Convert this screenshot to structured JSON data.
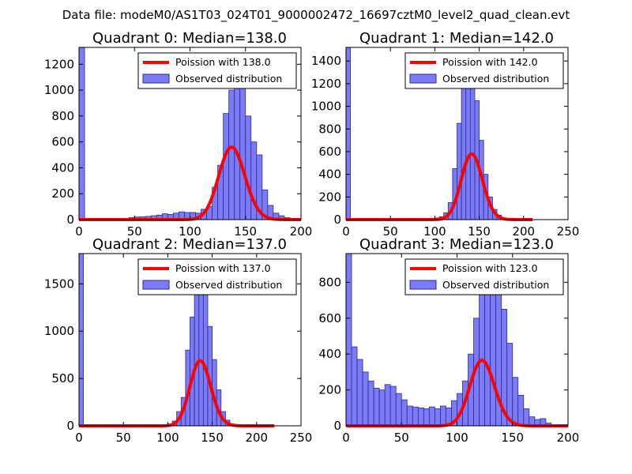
{
  "figure": {
    "suptitle": "Data file: modeM0/AS1T03_024T01_9000002472_16697cztM0_level2_quad_clean.evt"
  },
  "colors": {
    "bar_fill": "#7b7bf7",
    "bar_edge": "#2c2c8a",
    "fit_line": "#ff0000",
    "axes": "#000000",
    "background": "#ffffff"
  },
  "chart_data": [
    {
      "type": "bar",
      "title": "Quadrant 0: Median=138.0",
      "xlim": [
        0,
        200
      ],
      "ylim": [
        0,
        1330
      ],
      "xticks": [
        0,
        50,
        100,
        150,
        200
      ],
      "yticks": [
        0,
        200,
        400,
        600,
        800,
        1000,
        1200
      ],
      "legend": {
        "location": "top-right",
        "entries": [
          "Poission with 138.0",
          "Observed distribution"
        ]
      },
      "histogram": {
        "bin_width": 5,
        "bins": [
          {
            "x": 0,
            "count": 1330
          },
          {
            "x": 5,
            "count": 5
          },
          {
            "x": 10,
            "count": 5
          },
          {
            "x": 15,
            "count": 5
          },
          {
            "x": 20,
            "count": 5
          },
          {
            "x": 25,
            "count": 5
          },
          {
            "x": 30,
            "count": 5
          },
          {
            "x": 35,
            "count": 8
          },
          {
            "x": 40,
            "count": 10
          },
          {
            "x": 45,
            "count": 15
          },
          {
            "x": 50,
            "count": 20
          },
          {
            "x": 55,
            "count": 22
          },
          {
            "x": 60,
            "count": 25
          },
          {
            "x": 65,
            "count": 30
          },
          {
            "x": 70,
            "count": 35
          },
          {
            "x": 75,
            "count": 45
          },
          {
            "x": 80,
            "count": 40
          },
          {
            "x": 85,
            "count": 50
          },
          {
            "x": 90,
            "count": 60
          },
          {
            "x": 95,
            "count": 55
          },
          {
            "x": 100,
            "count": 55
          },
          {
            "x": 105,
            "count": 50
          },
          {
            "x": 110,
            "count": 80
          },
          {
            "x": 115,
            "count": 100
          },
          {
            "x": 120,
            "count": 250
          },
          {
            "x": 125,
            "count": 420
          },
          {
            "x": 130,
            "count": 820
          },
          {
            "x": 135,
            "count": 1000
          },
          {
            "x": 140,
            "count": 1150
          },
          {
            "x": 145,
            "count": 1030
          },
          {
            "x": 150,
            "count": 800
          },
          {
            "x": 155,
            "count": 600
          },
          {
            "x": 160,
            "count": 500
          },
          {
            "x": 165,
            "count": 230
          },
          {
            "x": 170,
            "count": 110
          },
          {
            "x": 175,
            "count": 50
          },
          {
            "x": 180,
            "count": 30
          },
          {
            "x": 185,
            "count": 15
          },
          {
            "x": 190,
            "count": 5
          },
          {
            "x": 195,
            "count": 5
          }
        ]
      },
      "poisson_fit": {
        "mean": 138.0,
        "scale": 16480,
        "x_range": [
          0,
          200
        ]
      }
    },
    {
      "type": "bar",
      "title": "Quadrant 1: Median=142.0",
      "xlim": [
        0,
        250
      ],
      "ylim": [
        0,
        1520
      ],
      "xticks": [
        0,
        50,
        100,
        150,
        200,
        250
      ],
      "yticks": [
        0,
        200,
        400,
        600,
        800,
        1000,
        1200,
        1400
      ],
      "legend": {
        "location": "top-right",
        "entries": [
          "Poission with 142.0",
          "Observed distribution"
        ]
      },
      "histogram": {
        "bin_width": 5,
        "bins": [
          {
            "x": 0,
            "count": 1520
          },
          {
            "x": 5,
            "count": 3
          },
          {
            "x": 10,
            "count": 3
          },
          {
            "x": 15,
            "count": 3
          },
          {
            "x": 20,
            "count": 3
          },
          {
            "x": 25,
            "count": 3
          },
          {
            "x": 30,
            "count": 3
          },
          {
            "x": 35,
            "count": 3
          },
          {
            "x": 40,
            "count": 3
          },
          {
            "x": 45,
            "count": 3
          },
          {
            "x": 50,
            "count": 3
          },
          {
            "x": 55,
            "count": 3
          },
          {
            "x": 60,
            "count": 3
          },
          {
            "x": 65,
            "count": 3
          },
          {
            "x": 70,
            "count": 3
          },
          {
            "x": 75,
            "count": 3
          },
          {
            "x": 80,
            "count": 3
          },
          {
            "x": 85,
            "count": 3
          },
          {
            "x": 90,
            "count": 5
          },
          {
            "x": 95,
            "count": 8
          },
          {
            "x": 100,
            "count": 15
          },
          {
            "x": 105,
            "count": 25
          },
          {
            "x": 110,
            "count": 60
          },
          {
            "x": 115,
            "count": 150
          },
          {
            "x": 120,
            "count": 450
          },
          {
            "x": 125,
            "count": 850
          },
          {
            "x": 130,
            "count": 1200
          },
          {
            "x": 135,
            "count": 1450
          },
          {
            "x": 140,
            "count": 1370
          },
          {
            "x": 145,
            "count": 1050
          },
          {
            "x": 150,
            "count": 700
          },
          {
            "x": 155,
            "count": 400
          },
          {
            "x": 160,
            "count": 200
          },
          {
            "x": 165,
            "count": 90
          },
          {
            "x": 170,
            "count": 40
          },
          {
            "x": 175,
            "count": 15
          },
          {
            "x": 180,
            "count": 5
          },
          {
            "x": 185,
            "count": 3
          },
          {
            "x": 190,
            "count": 3
          }
        ]
      },
      "poisson_fit": {
        "mean": 142.0,
        "scale": 17330,
        "x_range": [
          0,
          210
        ]
      }
    },
    {
      "type": "bar",
      "title": "Quadrant 2: Median=137.0",
      "xlim": [
        0,
        250
      ],
      "ylim": [
        0,
        1820
      ],
      "xticks": [
        0,
        50,
        100,
        150,
        200,
        250
      ],
      "yticks": [
        0,
        500,
        1000,
        1500
      ],
      "legend": {
        "location": "top-right",
        "entries": [
          "Poission with 137.0",
          "Observed distribution"
        ]
      },
      "histogram": {
        "bin_width": 5,
        "bins": [
          {
            "x": 0,
            "count": 1820
          },
          {
            "x": 90,
            "count": 5
          },
          {
            "x": 95,
            "count": 10
          },
          {
            "x": 100,
            "count": 20
          },
          {
            "x": 105,
            "count": 50
          },
          {
            "x": 110,
            "count": 150
          },
          {
            "x": 115,
            "count": 300
          },
          {
            "x": 120,
            "count": 800
          },
          {
            "x": 125,
            "count": 1150
          },
          {
            "x": 130,
            "count": 1450
          },
          {
            "x": 135,
            "count": 1720
          },
          {
            "x": 140,
            "count": 1500
          },
          {
            "x": 145,
            "count": 1050
          },
          {
            "x": 150,
            "count": 700
          },
          {
            "x": 155,
            "count": 380
          },
          {
            "x": 160,
            "count": 150
          },
          {
            "x": 165,
            "count": 60
          },
          {
            "x": 170,
            "count": 20
          },
          {
            "x": 175,
            "count": 8
          }
        ]
      },
      "poisson_fit": {
        "mean": 137.0,
        "scale": 20190,
        "x_range": [
          0,
          220
        ]
      }
    },
    {
      "type": "bar",
      "title": "Quadrant 3: Median=123.0",
      "xlim": [
        0,
        200
      ],
      "ylim": [
        0,
        960
      ],
      "xticks": [
        0,
        50,
        100,
        150,
        200
      ],
      "yticks": [
        0,
        200,
        400,
        600,
        800
      ],
      "legend": {
        "location": "top-right",
        "entries": [
          "Poission with 123.0",
          "Observed distribution"
        ]
      },
      "histogram": {
        "bin_width": 5,
        "bins": [
          {
            "x": 0,
            "count": 960
          },
          {
            "x": 5,
            "count": 440
          },
          {
            "x": 10,
            "count": 370
          },
          {
            "x": 15,
            "count": 300
          },
          {
            "x": 20,
            "count": 250
          },
          {
            "x": 25,
            "count": 210
          },
          {
            "x": 30,
            "count": 200
          },
          {
            "x": 35,
            "count": 230
          },
          {
            "x": 40,
            "count": 220
          },
          {
            "x": 45,
            "count": 180
          },
          {
            "x": 50,
            "count": 145
          },
          {
            "x": 55,
            "count": 110
          },
          {
            "x": 60,
            "count": 105
          },
          {
            "x": 65,
            "count": 100
          },
          {
            "x": 70,
            "count": 95
          },
          {
            "x": 75,
            "count": 105
          },
          {
            "x": 80,
            "count": 95
          },
          {
            "x": 85,
            "count": 110
          },
          {
            "x": 90,
            "count": 100
          },
          {
            "x": 95,
            "count": 140
          },
          {
            "x": 100,
            "count": 180
          },
          {
            "x": 105,
            "count": 250
          },
          {
            "x": 110,
            "count": 400
          },
          {
            "x": 115,
            "count": 600
          },
          {
            "x": 120,
            "count": 800
          },
          {
            "x": 125,
            "count": 880
          },
          {
            "x": 130,
            "count": 930
          },
          {
            "x": 135,
            "count": 750
          },
          {
            "x": 140,
            "count": 650
          },
          {
            "x": 145,
            "count": 460
          },
          {
            "x": 150,
            "count": 270
          },
          {
            "x": 155,
            "count": 170
          },
          {
            "x": 160,
            "count": 95
          },
          {
            "x": 165,
            "count": 50
          },
          {
            "x": 170,
            "count": 35
          },
          {
            "x": 175,
            "count": 40
          },
          {
            "x": 180,
            "count": 15
          },
          {
            "x": 185,
            "count": 5
          },
          {
            "x": 190,
            "count": 5
          },
          {
            "x": 195,
            "count": 5
          }
        ]
      },
      "poisson_fit": {
        "mean": 123.0,
        "scale": 10150,
        "x_range": [
          0,
          200
        ]
      }
    }
  ]
}
